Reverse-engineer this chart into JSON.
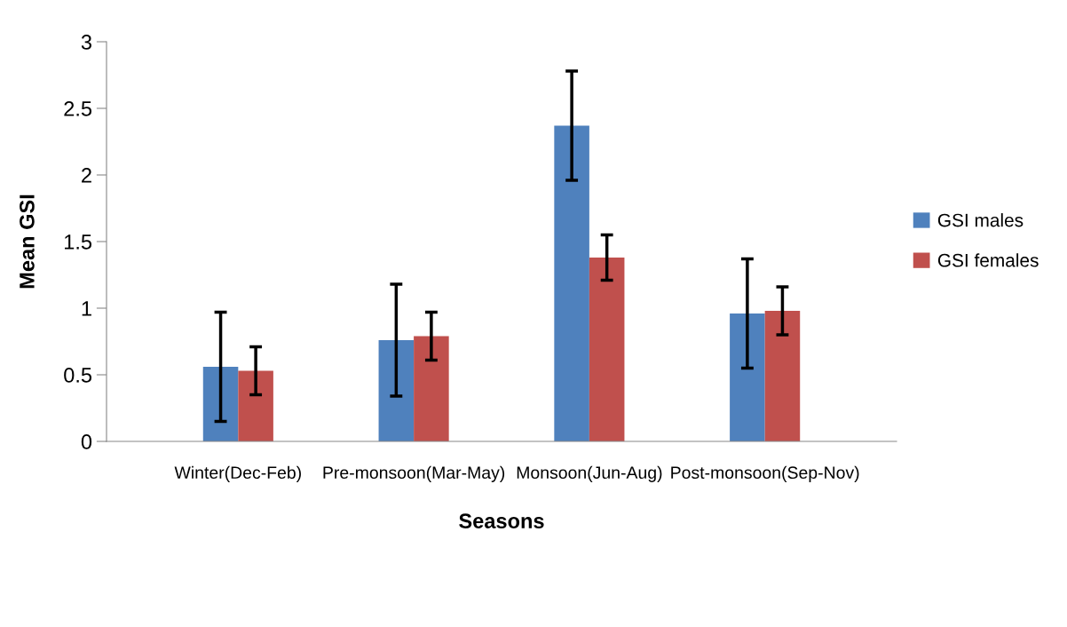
{
  "chart_data": {
    "type": "bar",
    "xlabel": "Seasons",
    "ylabel": "Mean GSI",
    "categories": [
      "Winter(Dec-Feb)",
      "Pre-monsoon(Mar-May)",
      "Monsoon(Jun-Aug)",
      "Post-monsoon(Sep-Nov)"
    ],
    "series": [
      {
        "name": "GSI males",
        "color": "#4f81bd",
        "values": [
          0.56,
          0.76,
          2.37,
          0.96
        ],
        "errors": [
          0.41,
          0.42,
          0.41,
          0.41
        ]
      },
      {
        "name": "GSI females",
        "color": "#c0504d",
        "values": [
          0.53,
          0.79,
          1.38,
          0.98
        ],
        "errors": [
          0.18,
          0.18,
          0.17,
          0.18
        ]
      }
    ],
    "ylim": [
      0,
      3
    ],
    "yticks": [
      0,
      0.5,
      1,
      1.5,
      2,
      2.5,
      3
    ],
    "grid": false,
    "legend": "right"
  }
}
